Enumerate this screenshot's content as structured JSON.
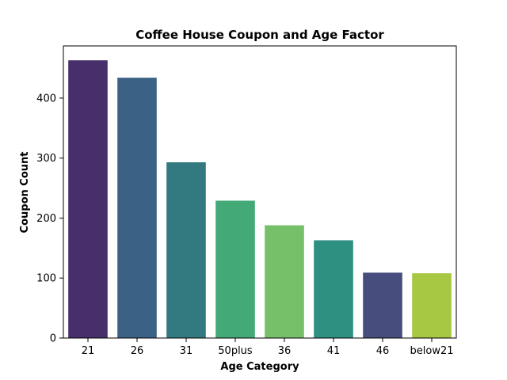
{
  "chart_data": {
    "type": "bar",
    "title": "Coffee House Coupon and Age Factor",
    "xlabel": "Age Category",
    "ylabel": "Coupon Count",
    "categories": [
      "21",
      "26",
      "31",
      "50plus",
      "36",
      "41",
      "46",
      "below21"
    ],
    "values": [
      463,
      434,
      293,
      229,
      188,
      163,
      109,
      108
    ],
    "colors": [
      "#482f6b",
      "#3b6284",
      "#327a80",
      "#43a976",
      "#76c06a",
      "#2d9080",
      "#474e7e",
      "#a7c842"
    ],
    "ylim": [
      0,
      487
    ],
    "yticks": [
      0,
      100,
      200,
      300,
      400
    ],
    "grid": false,
    "legend": "none"
  }
}
